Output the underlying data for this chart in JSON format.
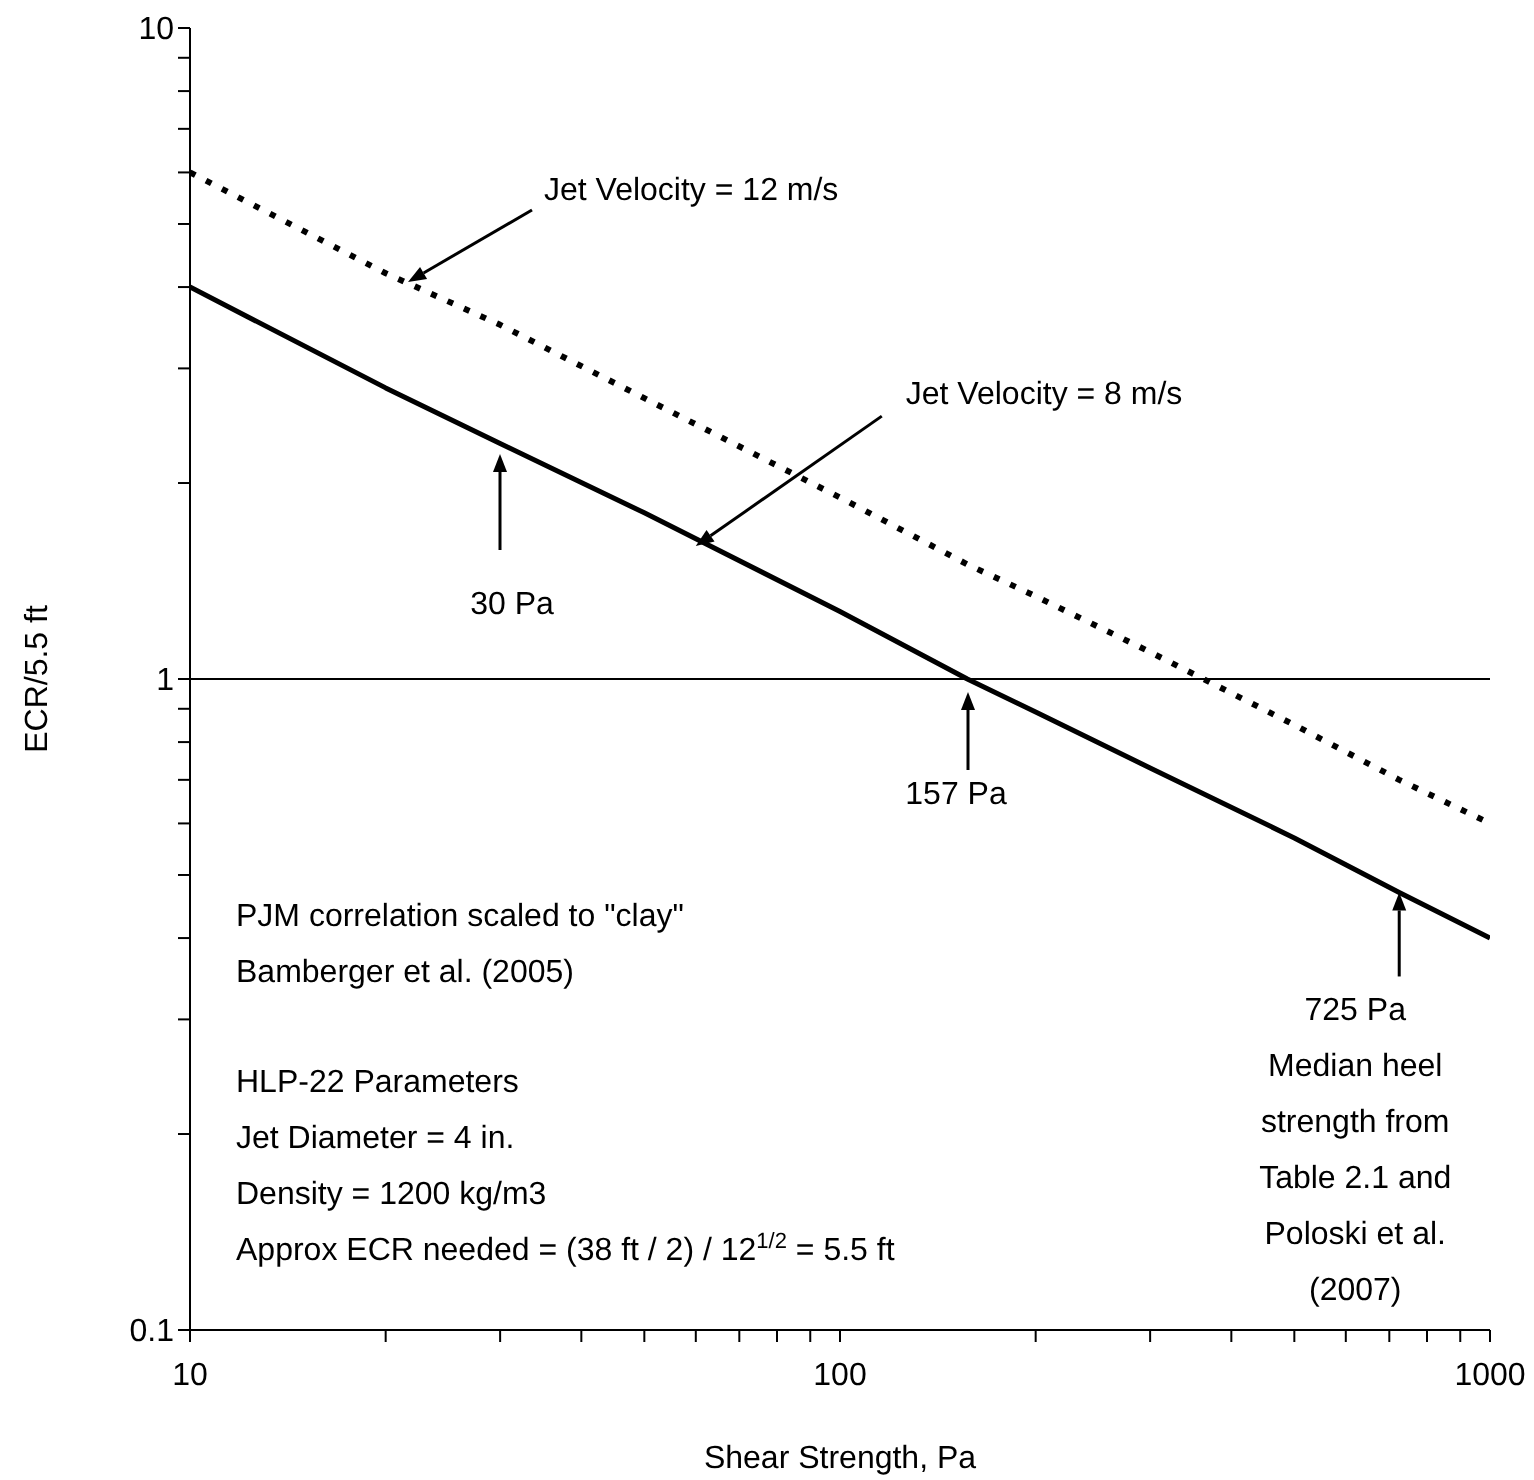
{
  "chart_data": {
    "type": "line",
    "xlabel": "Shear Strength, Pa",
    "ylabel": "ECR/5.5 ft",
    "log": "xy",
    "grid": false,
    "marker": "none",
    "x": [
      10,
      20,
      30,
      50,
      100,
      157,
      200,
      300,
      500,
      725,
      1000
    ],
    "series": [
      {
        "color": "#000000",
        "line_style": "dotted",
        "values": [
          6,
          4.2,
          3.5,
          2.7,
          1.9,
          1.5,
          1.34,
          1.1,
          0.85,
          0.7,
          0.6
        ]
      },
      {
        "color": "#000000",
        "line_style": "solid",
        "values": [
          4,
          2.8,
          2.3,
          1.8,
          1.27,
          1,
          0.89,
          0.73,
          0.57,
          0.47,
          0.4
        ]
      }
    ],
    "xlim": [
      10,
      1000
    ],
    "xticks": [
      10,
      {
        "value": 20,
        "label": null
      },
      {
        "value": 30,
        "label": null
      },
      {
        "value": 40,
        "label": null
      },
      {
        "value": 50,
        "label": null
      },
      {
        "value": 60,
        "label": null
      },
      {
        "value": 70,
        "label": null
      },
      {
        "value": 80,
        "label": null
      },
      {
        "value": 90,
        "label": null
      },
      100,
      {
        "value": 200,
        "label": null
      },
      {
        "value": 300,
        "label": null
      },
      {
        "value": 400,
        "label": null
      },
      {
        "value": 500,
        "label": null
      },
      {
        "value": 600,
        "label": null
      },
      {
        "value": 700,
        "label": null
      },
      {
        "value": 800,
        "label": null
      },
      {
        "value": 900,
        "label": null
      },
      1000
    ],
    "ylim": [
      0.1,
      10
    ],
    "yticks": [
      0.1,
      {
        "value": 0.2,
        "label": null
      },
      {
        "value": 0.3,
        "label": null
      },
      {
        "value": 0.4,
        "label": null
      },
      {
        "value": 0.5,
        "label": null
      },
      {
        "value": 0.6,
        "label": null
      },
      {
        "value": 0.7,
        "label": null
      },
      {
        "value": 0.8,
        "label": null
      },
      {
        "value": 0.9,
        "label": null
      },
      1,
      {
        "value": 2,
        "label": null
      },
      {
        "value": 3,
        "label": null
      },
      {
        "value": 4,
        "label": null
      },
      {
        "value": 5,
        "label": null
      },
      {
        "value": 6,
        "label": null
      },
      {
        "value": 7,
        "label": null
      },
      {
        "value": 8,
        "label": null
      },
      {
        "value": 9,
        "label": null
      },
      10
    ],
    "ref_lines": [
      {
        "axis": "y",
        "value": 1,
        "color": "#000000"
      }
    ],
    "annotations": [
      "Jet Velocity = 12 m/s",
      {
        "text": "Jet Velocity = 8 m/s",
        "x": 60,
        "y": 1.6
      },
      "30 Pa",
      "157 Pa",
      {
        "text": "725 Pa\nMedian heel\nstrength from\nTable 2.1 and\nPoloski et al.\n(2007)",
        "x": 725,
        "y": 0.47
      },
      "PJM correlation scaled to \"clay\"\nBamberger et al. (2005)",
      "HLP-22 Parameters\nJet Diameter = 4 in.\nDensity = 1200 kg/m3\nApprox  ECR needed = (38 ft / 2) / 12$^{1/2}$ = 5.5 ft"
    ]
  }
}
